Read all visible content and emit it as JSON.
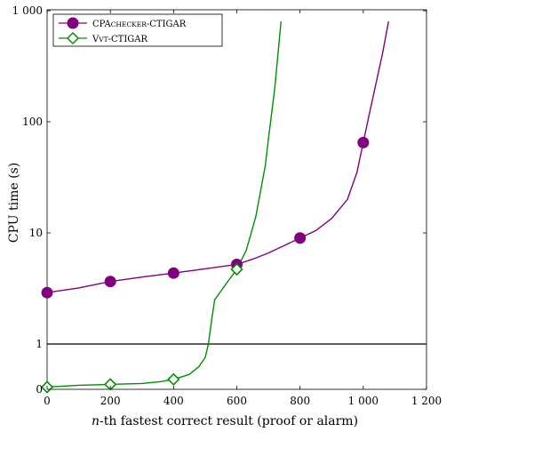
{
  "chart_data": {
    "type": "line",
    "title": "",
    "xlabel": "n-th fastest correct result (proof or alarm)",
    "xlabel_italic_part": "n",
    "xlabel_rest": "-th fastest correct result (proof or alarm)",
    "ylabel": "CPU time (s)",
    "xlim": [
      0,
      1200
    ],
    "y_scale": "linear below 1, log from 1 to 1000",
    "ylim": [
      0,
      1000
    ],
    "x_ticks": [
      {
        "value": 0,
        "label": "0"
      },
      {
        "value": 200,
        "label": "200"
      },
      {
        "value": 400,
        "label": "400"
      },
      {
        "value": 600,
        "label": "600"
      },
      {
        "value": 800,
        "label": "800"
      },
      {
        "value": 1000,
        "label": "1 000"
      },
      {
        "value": 1200,
        "label": "1 200"
      }
    ],
    "y_ticks": [
      {
        "value": 0,
        "label": "0"
      },
      {
        "value": 1,
        "label": "1"
      },
      {
        "value": 10,
        "label": "10"
      },
      {
        "value": 100,
        "label": "100"
      },
      {
        "value": 1000,
        "label": "1 000"
      }
    ],
    "reference_line_y": 1,
    "grid": false,
    "legend_position": "top-left",
    "series": [
      {
        "name": "CPAchecker-CTIGAR",
        "name_prefix": "CPA",
        "name_smallcaps": "checker",
        "name_suffix": "-CTIGAR",
        "color": "#800080",
        "marker": "circle",
        "points": [
          [
            0,
            2.9
          ],
          [
            100,
            3.2
          ],
          [
            200,
            3.65
          ],
          [
            300,
            4.0
          ],
          [
            400,
            4.35
          ],
          [
            500,
            4.75
          ],
          [
            600,
            5.2
          ],
          [
            650,
            5.8
          ],
          [
            700,
            6.6
          ],
          [
            750,
            7.7
          ],
          [
            800,
            9.0
          ],
          [
            850,
            10.5
          ],
          [
            900,
            13.5
          ],
          [
            950,
            20
          ],
          [
            980,
            35
          ],
          [
            1000,
            65
          ],
          [
            1020,
            120
          ],
          [
            1040,
            220
          ],
          [
            1060,
            400
          ],
          [
            1080,
            800
          ]
        ],
        "markers": [
          [
            0,
            2.9
          ],
          [
            200,
            3.65
          ],
          [
            400,
            4.35
          ],
          [
            600,
            5.2
          ],
          [
            800,
            9.0
          ],
          [
            1000,
            65
          ]
        ]
      },
      {
        "name": "Vvt-CTIGAR",
        "name_prefix": "V",
        "name_smallcaps": "vt",
        "name_suffix": "-CTIGAR",
        "color": "#009000",
        "marker": "diamond",
        "points": [
          [
            0,
            0.05
          ],
          [
            100,
            0.09
          ],
          [
            200,
            0.11
          ],
          [
            300,
            0.13
          ],
          [
            360,
            0.17
          ],
          [
            400,
            0.22
          ],
          [
            450,
            0.33
          ],
          [
            480,
            0.5
          ],
          [
            500,
            0.7
          ],
          [
            510,
            1.0
          ],
          [
            520,
            1.6
          ],
          [
            530,
            2.5
          ],
          [
            550,
            3.0
          ],
          [
            570,
            3.6
          ],
          [
            600,
            4.7
          ],
          [
            630,
            7
          ],
          [
            660,
            14
          ],
          [
            690,
            40
          ],
          [
            700,
            70
          ],
          [
            720,
            200
          ],
          [
            740,
            800
          ]
        ],
        "markers": [
          [
            0,
            0.05
          ],
          [
            200,
            0.11
          ],
          [
            400,
            0.22
          ],
          [
            600,
            4.7
          ]
        ]
      }
    ]
  }
}
